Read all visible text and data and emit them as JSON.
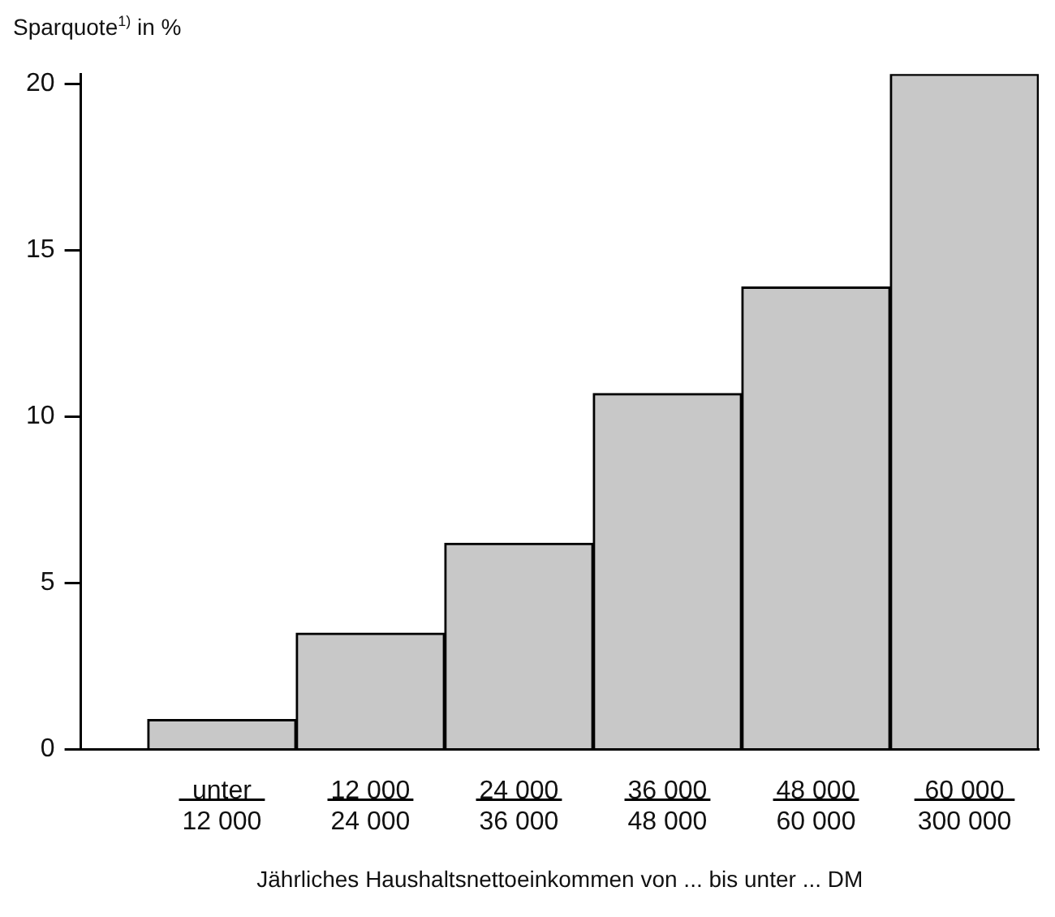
{
  "chart_data": {
    "type": "bar",
    "ylabel": "Sparquote$^{1)}$ in %",
    "xlabel": "Jährliches Haushaltsnettoeinkommen von ... bis unter ... DM",
    "categories": [
      "unter\n12 000",
      "12 000\n24 000",
      "24 000\n36 000",
      "36 000\n48 000",
      "48 000\n60 000",
      "60 000\n300 000"
    ],
    "values": [
      0.9,
      3.5,
      6.2,
      10.7,
      13.9,
      20.3
    ],
    "color": "#c8c8c8",
    "ylim": [
      0,
      20.3
    ],
    "yticks": [
      0,
      5,
      10,
      15,
      20
    ]
  }
}
